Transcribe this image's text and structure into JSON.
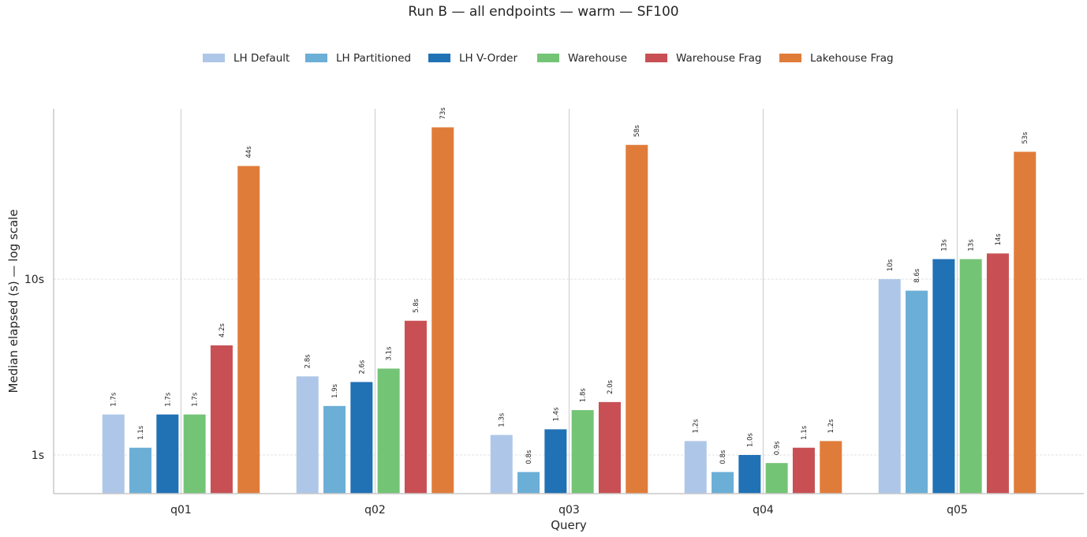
{
  "chart_data": {
    "type": "bar",
    "title": "Run B — all endpoints — warm — SF100",
    "xlabel": "Query",
    "ylabel": "Median elapsed (s) — log scale",
    "yscale": "log",
    "ylim": [
      0.6,
      100
    ],
    "yticks": [
      {
        "value": 1,
        "label": "1s"
      },
      {
        "value": 10,
        "label": "10s"
      }
    ],
    "grid": "y-major dotted",
    "legend_position": "top-center",
    "categories": [
      "q01",
      "q02",
      "q03",
      "q04",
      "q05"
    ],
    "series": [
      {
        "name": "LH Default",
        "color": "#aec7e8",
        "values": [
          1.7,
          2.8,
          1.3,
          1.2,
          10
        ],
        "labels": [
          "1.7s",
          "2.8s",
          "1.3s",
          "1.2s",
          "10s"
        ]
      },
      {
        "name": "LH Partitioned",
        "color": "#6baed6",
        "values": [
          1.1,
          1.9,
          0.8,
          0.8,
          8.6
        ],
        "labels": [
          "1.1s",
          "1.9s",
          "0.8s",
          "0.8s",
          "8.6s"
        ]
      },
      {
        "name": "LH V-Order",
        "color": "#2171b5",
        "values": [
          1.7,
          2.6,
          1.4,
          1.0,
          13
        ],
        "labels": [
          "1.7s",
          "2.6s",
          "1.4s",
          "1.0s",
          "13s"
        ]
      },
      {
        "name": "Warehouse",
        "color": "#74c476",
        "values": [
          1.7,
          3.1,
          1.8,
          0.9,
          13
        ],
        "labels": [
          "1.7s",
          "3.1s",
          "1.8s",
          "0.9s",
          "13s"
        ]
      },
      {
        "name": "Warehouse Frag",
        "color": "#c85054",
        "values": [
          4.2,
          5.8,
          2.0,
          1.1,
          14
        ],
        "labels": [
          "4.2s",
          "5.8s",
          "2.0s",
          "1.1s",
          "14s"
        ]
      },
      {
        "name": "Lakehouse Frag",
        "color": "#e07c3a",
        "values": [
          44,
          73,
          58,
          1.2,
          53
        ],
        "labels": [
          "44s",
          "73s",
          "58s",
          "1.2s",
          "53s"
        ]
      }
    ]
  }
}
